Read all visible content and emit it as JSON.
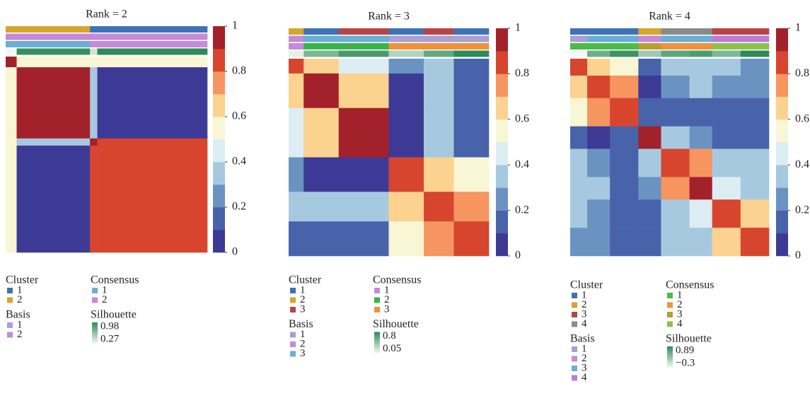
{
  "chart_data": [
    {
      "type": "heatmap",
      "title": "Rank = 2",
      "groups": [
        3,
        20,
        2,
        30
      ],
      "matrix": [
        [
          0.95,
          0.55,
          0.5,
          0.55
        ],
        [
          0.55,
          0.95,
          0.3,
          0.05
        ],
        [
          0.5,
          0.3,
          0.95,
          0.85
        ],
        [
          0.55,
          0.05,
          0.85,
          0.88
        ]
      ],
      "clim": [
        0,
        1
      ],
      "cticks": [
        0,
        0.2,
        0.4,
        0.6,
        0.8,
        1
      ],
      "colors": [
        "#3d3a96",
        "#4863aa",
        "#6a93c2",
        "#a7c9df",
        "#dcedf3",
        "#f8f6d4",
        "#fbd28f",
        "#f6955f",
        "#d7452f",
        "#a2212b"
      ],
      "tracks": {
        "cluster": [
          2,
          2,
          1,
          1
        ],
        "basis": [
          2,
          2,
          2,
          2
        ],
        "consensus": [
          1,
          1,
          2,
          2
        ],
        "silhouette": [
          0.27,
          0.95,
          0.4,
          0.98
        ]
      },
      "legend": [
        {
          "key": "cluster",
          "title": "Cluster",
          "items": [
            "1",
            "2"
          ],
          "colors": [
            "#3f72b5",
            "#d4a72c"
          ]
        },
        {
          "key": "basis",
          "title": "Basis",
          "items": [
            "1",
            "2"
          ],
          "colors": [
            "#a9a0d4",
            "#c58ad9"
          ]
        },
        {
          "key": "consensus",
          "title": "Consensus",
          "items": [
            "1",
            "2"
          ],
          "colors": [
            "#6baed6",
            "#c58ad9"
          ]
        },
        {
          "key": "silhouette",
          "title": "Silhouette",
          "range": [
            0.98,
            0.27
          ],
          "colors": [
            "#2e8b57",
            "#f2f8f4"
          ]
        }
      ]
    },
    {
      "type": "heatmap",
      "title": "Rank = 3",
      "groups": [
        6,
        14,
        20,
        14,
        12,
        14
      ],
      "matrix": [
        [
          0.85,
          0.6,
          0.45,
          0.2,
          0.3,
          0.15
        ],
        [
          0.6,
          0.9,
          0.65,
          0.05,
          0.35,
          0.1
        ],
        [
          0.45,
          0.65,
          0.9,
          0.05,
          0.3,
          0.1
        ],
        [
          0.2,
          0.05,
          0.05,
          0.85,
          0.6,
          0.55
        ],
        [
          0.3,
          0.35,
          0.3,
          0.6,
          0.85,
          0.7
        ],
        [
          0.15,
          0.1,
          0.1,
          0.55,
          0.7,
          0.88
        ]
      ],
      "clim": [
        0,
        1
      ],
      "cticks": [
        0,
        0.2,
        0.4,
        0.6,
        0.8,
        1
      ],
      "colors": [
        "#3d3a96",
        "#4863aa",
        "#6a93c2",
        "#a7c9df",
        "#dcedf3",
        "#f8f6d4",
        "#fbd28f",
        "#f6955f",
        "#d7452f",
        "#a2212b"
      ],
      "tracks": {
        "cluster": [
          2,
          1,
          3,
          1,
          3,
          1
        ],
        "basis": [
          2,
          3,
          3,
          1,
          1,
          1
        ],
        "consensus": [
          1,
          2,
          2,
          3,
          3,
          3
        ],
        "silhouette": [
          0.1,
          0.5,
          0.7,
          0.3,
          0.6,
          0.8
        ]
      },
      "legend": [
        {
          "key": "cluster",
          "title": "Cluster",
          "items": [
            "1",
            "2",
            "3"
          ],
          "colors": [
            "#3f72b5",
            "#d4a72c",
            "#b84545"
          ]
        },
        {
          "key": "basis",
          "title": "Basis",
          "items": [
            "1",
            "2",
            "3"
          ],
          "colors": [
            "#a9a0d4",
            "#c58ad9",
            "#6baed6"
          ]
        },
        {
          "key": "consensus",
          "title": "Consensus",
          "items": [
            "1",
            "2",
            "3"
          ],
          "colors": [
            "#c58ad9",
            "#3bb34a",
            "#f0923a"
          ]
        },
        {
          "key": "silhouette",
          "title": "Silhouette",
          "range": [
            0.8,
            0.05
          ],
          "colors": [
            "#2e8b57",
            "#f2f8f4"
          ]
        }
      ]
    },
    {
      "type": "heatmap",
      "title": "Rank = 4",
      "groups": [
        6,
        8,
        10,
        8,
        10,
        8,
        10,
        10
      ],
      "matrix": [
        [
          0.8,
          0.6,
          0.55,
          0.1,
          0.3,
          0.35,
          0.3,
          0.25
        ],
        [
          0.6,
          0.85,
          0.75,
          0.05,
          0.2,
          0.3,
          0.2,
          0.2
        ],
        [
          0.55,
          0.75,
          0.85,
          0.1,
          0.1,
          0.15,
          0.1,
          0.15
        ],
        [
          0.1,
          0.05,
          0.1,
          0.9,
          0.3,
          0.2,
          0.1,
          0.1
        ],
        [
          0.3,
          0.2,
          0.1,
          0.3,
          0.85,
          0.7,
          0.35,
          0.3
        ],
        [
          0.35,
          0.3,
          0.15,
          0.2,
          0.7,
          0.9,
          0.4,
          0.35
        ],
        [
          0.3,
          0.2,
          0.1,
          0.1,
          0.35,
          0.4,
          0.8,
          0.65
        ],
        [
          0.25,
          0.2,
          0.15,
          0.1,
          0.3,
          0.35,
          0.65,
          0.88
        ]
      ],
      "clim": [
        0,
        1
      ],
      "cticks": [
        0,
        0.2,
        0.4,
        0.6,
        0.8,
        1
      ],
      "colors": [
        "#3d3a96",
        "#4863aa",
        "#6a93c2",
        "#a7c9df",
        "#dcedf3",
        "#f8f6d4",
        "#fbd28f",
        "#f6955f",
        "#d7452f",
        "#a2212b"
      ],
      "tracks": {
        "cluster": [
          1,
          1,
          1,
          2,
          4,
          4,
          3,
          3
        ],
        "basis": [
          1,
          3,
          3,
          2,
          3,
          3,
          4,
          4
        ],
        "consensus": [
          1,
          1,
          1,
          3,
          2,
          2,
          4,
          4
        ],
        "silhouette": [
          -0.3,
          0.5,
          0.8,
          0.2,
          0.6,
          0.7,
          0.4,
          0.89
        ]
      },
      "legend": [
        {
          "key": "cluster",
          "title": "Cluster",
          "items": [
            "1",
            "2",
            "3",
            "4"
          ],
          "colors": [
            "#3f72b5",
            "#d4a72c",
            "#b84545",
            "#8a8a8a"
          ]
        },
        {
          "key": "basis",
          "title": "Basis",
          "items": [
            "1",
            "2",
            "3",
            "4"
          ],
          "colors": [
            "#a9a0d4",
            "#c58ad9",
            "#6baed6",
            "#c07ad6"
          ]
        },
        {
          "key": "consensus",
          "title": "Consensus",
          "items": [
            "1",
            "2",
            "3",
            "4"
          ],
          "colors": [
            "#4cbb47",
            "#f0923a",
            "#b8a030",
            "#8bc34a"
          ]
        },
        {
          "key": "silhouette",
          "title": "Silhouette",
          "range": [
            0.89,
            {
              "value": -0.3,
              "label": "−0.3"
            }
          ],
          "colors": [
            "#2e8b57",
            "#f2f8f4"
          ]
        }
      ]
    }
  ]
}
